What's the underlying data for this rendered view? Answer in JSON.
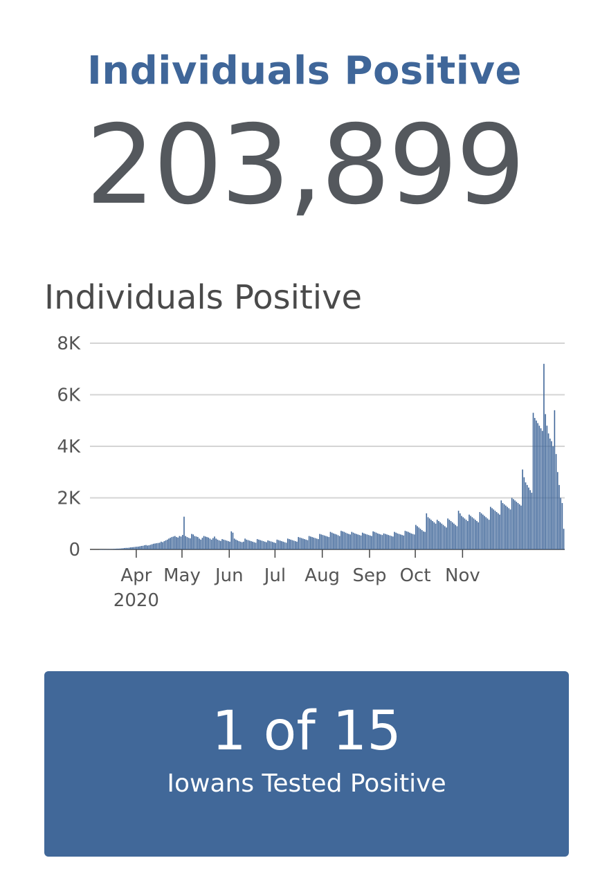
{
  "header": {
    "title": "Individuals Positive",
    "total": "203,899"
  },
  "chart_data": {
    "type": "bar",
    "title": "Individuals Positive",
    "xlabel": "",
    "ylabel": "",
    "ylim": [
      0,
      8000
    ],
    "y_ticks": [
      {
        "value": 0,
        "label": "0"
      },
      {
        "value": 2000,
        "label": "2K"
      },
      {
        "value": 4000,
        "label": "4K"
      },
      {
        "value": 6000,
        "label": "6K"
      },
      {
        "value": 8000,
        "label": "8K"
      }
    ],
    "x_ticks": [
      {
        "date": "2020-04-01",
        "label": "Apr",
        "sublabel": "2020"
      },
      {
        "date": "2020-05-01",
        "label": "May"
      },
      {
        "date": "2020-06-01",
        "label": "Jun"
      },
      {
        "date": "2020-07-01",
        "label": "Jul"
      },
      {
        "date": "2020-08-01",
        "label": "Aug"
      },
      {
        "date": "2020-09-01",
        "label": "Sep"
      },
      {
        "date": "2020-10-01",
        "label": "Oct"
      },
      {
        "date": "2020-11-01",
        "label": "Nov"
      }
    ],
    "start_date": "2020-03-08",
    "series": [
      {
        "color": "#3f6699",
        "values": [
          0,
          0,
          2,
          3,
          5,
          8,
          10,
          12,
          15,
          20,
          25,
          30,
          30,
          35,
          40,
          45,
          55,
          60,
          60,
          70,
          80,
          85,
          90,
          100,
          105,
          110,
          120,
          135,
          140,
          160,
          170,
          150,
          160,
          180,
          200,
          220,
          230,
          240,
          250,
          260,
          300,
          280,
          320,
          350,
          380,
          420,
          450,
          480,
          500,
          520,
          480,
          460,
          520,
          500,
          560,
          1270,
          520,
          480,
          450,
          430,
          600,
          580,
          520,
          500,
          480,
          420,
          380,
          450,
          520,
          500,
          480,
          460,
          420,
          380,
          440,
          500,
          420,
          380,
          350,
          330,
          400,
          380,
          360,
          340,
          320,
          300,
          700,
          650,
          420,
          380,
          350,
          320,
          300,
          280,
          300,
          420,
          380,
          360,
          340,
          320,
          300,
          280,
          260,
          400,
          380,
          360,
          340,
          320,
          300,
          280,
          350,
          330,
          310,
          290,
          270,
          250,
          380,
          360,
          340,
          320,
          300,
          280,
          260,
          420,
          400,
          380,
          360,
          340,
          320,
          300,
          480,
          460,
          440,
          420,
          400,
          380,
          360,
          520,
          500,
          480,
          460,
          440,
          420,
          400,
          600,
          580,
          560,
          540,
          520,
          500,
          480,
          680,
          650,
          620,
          600,
          580,
          550,
          520,
          720,
          700,
          680,
          650,
          620,
          600,
          580,
          680,
          650,
          620,
          600,
          580,
          560,
          540,
          650,
          620,
          600,
          580,
          560,
          540,
          520,
          700,
          680,
          650,
          620,
          600,
          580,
          560,
          620,
          600,
          580,
          560,
          540,
          520,
          500,
          680,
          650,
          620,
          600,
          580,
          560,
          540,
          720,
          700,
          680,
          650,
          620,
          600,
          580,
          950,
          900,
          850,
          800,
          750,
          700,
          680,
          1400,
          1250,
          1200,
          1150,
          1100,
          1050,
          1000,
          1150,
          1100,
          1050,
          1000,
          950,
          900,
          850,
          1200,
          1150,
          1100,
          1050,
          1000,
          950,
          900,
          1500,
          1400,
          1300,
          1250,
          1200,
          1150,
          1100,
          1350,
          1300,
          1250,
          1200,
          1150,
          1100,
          1050,
          1450,
          1400,
          1350,
          1300,
          1250,
          1200,
          1150,
          1650,
          1600,
          1550,
          1500,
          1450,
          1400,
          1350,
          1900,
          1800,
          1750,
          1700,
          1650,
          1600,
          1550,
          2000,
          1950,
          1900,
          1850,
          1800,
          1750,
          1700,
          3100,
          2800,
          2600,
          2500,
          2400,
          2300,
          2200,
          5300,
          5100,
          5000,
          4900,
          4800,
          4700,
          4600,
          7200,
          5250,
          4800,
          4500,
          4300,
          4200,
          4000,
          5400,
          3700,
          3000,
          2500,
          2000,
          1800,
          800
        ]
      }
    ]
  },
  "card": {
    "value": "1 of 15",
    "label": "Iowans Tested Positive"
  }
}
